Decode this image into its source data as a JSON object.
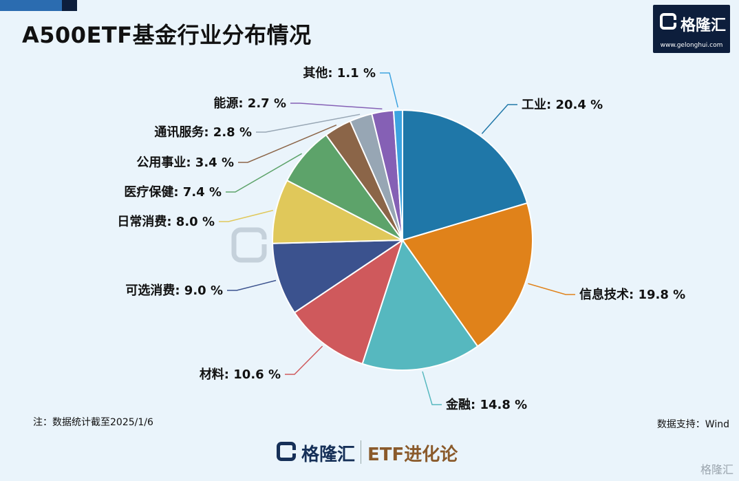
{
  "title": "A500ETF基金行业分布情况",
  "brand": {
    "logo_name": "格隆汇",
    "logo_url": "www.gelonghui.com",
    "column": "ETF进化论"
  },
  "note": "注：数据统计截至2025/1/6",
  "source": "数据支持：Wind",
  "corner_watermark": "格隆汇",
  "chart_data": {
    "type": "pie",
    "unit": "%",
    "slices": [
      {
        "label": "工业",
        "value": 20.4,
        "color": "#1f77a8",
        "display": "工业: 20.4 %"
      },
      {
        "label": "信息技术",
        "value": 19.8,
        "color": "#e0821a",
        "display": "信息技术: 19.8 %"
      },
      {
        "label": "金融",
        "value": 14.8,
        "color": "#56b8bf",
        "display": "金融: 14.8 %"
      },
      {
        "label": "材料",
        "value": 10.6,
        "color": "#cf595c",
        "display": "材料: 10.6 %"
      },
      {
        "label": "可选消费",
        "value": 9.0,
        "color": "#3b528e",
        "display": "可选消费: 9.0 %"
      },
      {
        "label": "日常消费",
        "value": 8.0,
        "color": "#e0c85a",
        "display": "日常消费: 8.0 %"
      },
      {
        "label": "医疗保健",
        "value": 7.4,
        "color": "#5da36a",
        "display": "医疗保健: 7.4 %"
      },
      {
        "label": "公用事业",
        "value": 3.4,
        "color": "#8b6548",
        "display": "公用事业: 3.4 %"
      },
      {
        "label": "通讯服务",
        "value": 2.8,
        "color": "#97a6b4",
        "display": "通讯服务: 2.8 %"
      },
      {
        "label": "能源",
        "value": 2.7,
        "color": "#8560b5",
        "display": "能源: 2.7 %"
      },
      {
        "label": "其他",
        "value": 1.1,
        "color": "#3da3e0",
        "display": "其他: 1.1 %"
      }
    ]
  }
}
